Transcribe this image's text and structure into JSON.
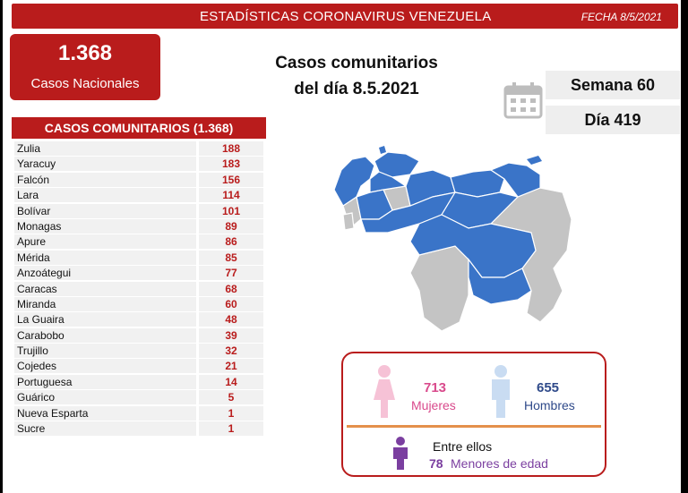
{
  "header": {
    "title": "ESTADÍSTICAS CORONAVIRUS VENEZUELA",
    "date": "FECHA 8/5/2021"
  },
  "national": {
    "value": "1.368",
    "label": "Casos Nacionales"
  },
  "main_title": {
    "line1": "Casos comunitarios",
    "line2": "del día 8.5.2021"
  },
  "week": "Semana 60",
  "day": "Día 419",
  "community": {
    "header": "CASOS COMUNITARIOS (1.368)",
    "rows": [
      {
        "name": "Zulia",
        "value": "188"
      },
      {
        "name": "Yaracuy",
        "value": "183"
      },
      {
        "name": "Falcón",
        "value": "156"
      },
      {
        "name": "Lara",
        "value": "114"
      },
      {
        "name": "Bolívar",
        "value": "101"
      },
      {
        "name": "Monagas",
        "value": "89"
      },
      {
        "name": "Apure",
        "value": "86"
      },
      {
        "name": "Mérida",
        "value": "85"
      },
      {
        "name": "Anzoátegui",
        "value": "77"
      },
      {
        "name": "Caracas",
        "value": "68"
      },
      {
        "name": "Miranda",
        "value": "60"
      },
      {
        "name": "La Guaira",
        "value": "48"
      },
      {
        "name": "Carabobo",
        "value": "39"
      },
      {
        "name": "Trujillo",
        "value": "32"
      },
      {
        "name": "Cojedes",
        "value": "21"
      },
      {
        "name": "Portuguesa",
        "value": "14"
      },
      {
        "name": "Guárico",
        "value": "5"
      },
      {
        "name": "Nueva Esparta",
        "value": "1"
      },
      {
        "name": "Sucre",
        "value": "1"
      }
    ]
  },
  "gender": {
    "women_count": "713",
    "women_label": "Mujeres",
    "men_count": "655",
    "men_label": "Hombres",
    "minors_intro": "Entre ellos",
    "minors_count": "78",
    "minors_label": "Menores de edad"
  },
  "colors": {
    "accent": "#b91c1c",
    "map_blue": "#3a74c8",
    "map_gray": "#c4c4c4",
    "women": "#d94a8c",
    "men": "#2f4a8a",
    "minors": "#7b3fa0",
    "divider": "#e4904b"
  },
  "icons": [
    "calendar-icon",
    "female-icon",
    "male-icon",
    "child-icon",
    "venezuela-map"
  ]
}
